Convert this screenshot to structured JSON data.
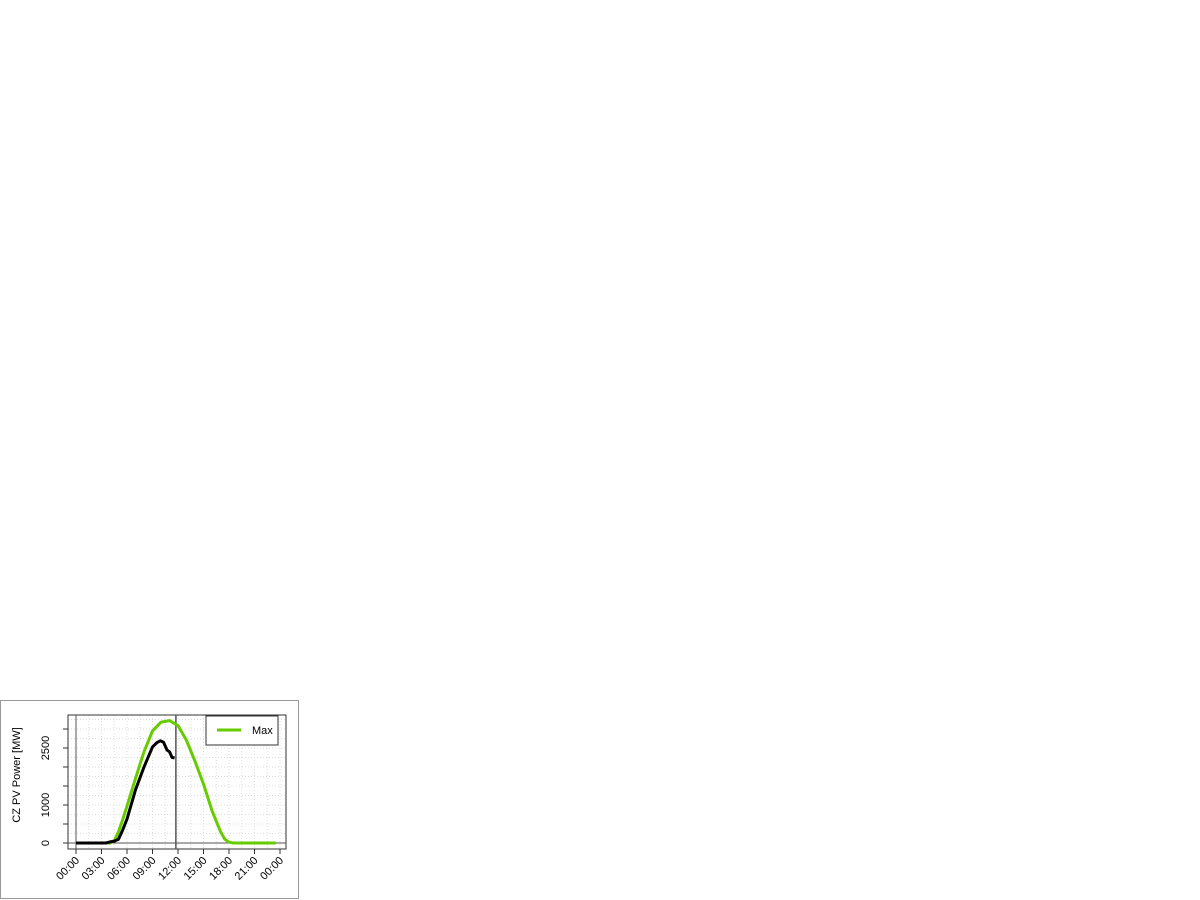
{
  "chart_data": {
    "type": "line",
    "title": "",
    "xlabel": "",
    "ylabel": "CZ PV Power [MW]",
    "xlim_hours": [
      0,
      24
    ],
    "ylim": [
      0,
      3300
    ],
    "x_tick_labels": [
      "00:00",
      "03:00",
      "06:00",
      "09:00",
      "12:00",
      "15:00",
      "18:00",
      "21:00",
      "00:00"
    ],
    "y_ticks": [
      0,
      500,
      1000,
      1500,
      2000,
      2500,
      3000
    ],
    "y_tick_labels": {
      "0": "0",
      "1000": "1000",
      "2500": "2500"
    },
    "grid": true,
    "current_time_marker_hours": 11.75,
    "legend": {
      "placement": "top-right",
      "entries": [
        {
          "label": "Max",
          "color": "#66cc00"
        }
      ]
    },
    "series": [
      {
        "name": "Max",
        "color": "#66cc00",
        "x": [
          0,
          1,
          2,
          3,
          4,
          4.5,
          5,
          5.5,
          6,
          7,
          8,
          9,
          10,
          11,
          12,
          13,
          14,
          15,
          16,
          17,
          17.5,
          18,
          18.5,
          19,
          20,
          21,
          22,
          23,
          23.5
        ],
        "values": [
          0,
          0,
          0,
          0,
          0,
          60,
          300,
          620,
          970,
          1700,
          2400,
          2950,
          3180,
          3220,
          3090,
          2700,
          2150,
          1550,
          850,
          300,
          100,
          20,
          0,
          0,
          0,
          0,
          0,
          0,
          0
        ]
      },
      {
        "color": "#000000",
        "x": [
          0,
          1,
          2,
          3,
          3.5,
          4,
          4.5,
          5,
          5.5,
          6,
          7,
          8,
          9,
          9.5,
          9.9,
          10.3,
          10.7,
          11,
          11.3,
          11.6
        ],
        "values": [
          0,
          0,
          0,
          0,
          0,
          30,
          50,
          100,
          350,
          630,
          1400,
          2000,
          2530,
          2640,
          2690,
          2650,
          2450,
          2400,
          2250,
          2240
        ]
      }
    ]
  }
}
